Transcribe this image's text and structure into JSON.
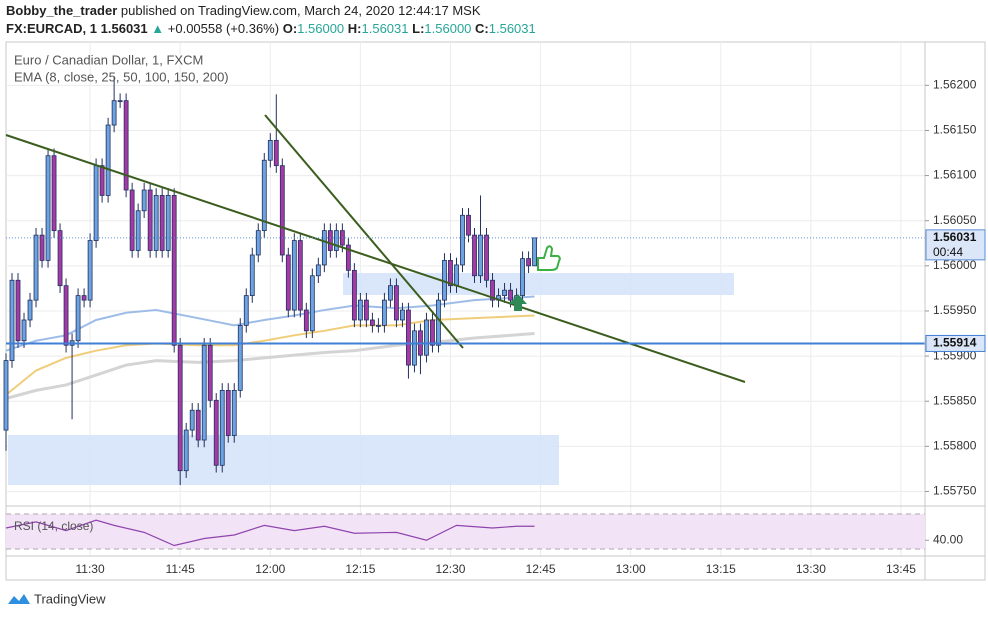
{
  "header": {
    "author": "Bobby_the_trader",
    "published": "published on TradingView.com, March 24, 2020 12:44:17 MSK",
    "symbol": "FX:EURCAD, 1",
    "last": "1.56031",
    "change_arrow": "▲",
    "change": "+0.00558 (+0.36%)",
    "ohlc": [
      {
        "label": "O:",
        "value": "1.56000"
      },
      {
        "label": "H:",
        "value": "1.56031"
      },
      {
        "label": "L:",
        "value": "1.56000"
      },
      {
        "label": "C:",
        "value": "1.56031"
      }
    ]
  },
  "chart_data": {
    "type": "candlestick",
    "title": "Euro / Canadian Dollar, 1, FXCM",
    "indicator_label": "EMA (8, close, 25, 50, 100, 150, 200)",
    "x": [
      "11:16",
      "11:17",
      "11:18",
      "11:19",
      "11:20",
      "11:21",
      "11:22",
      "11:23",
      "11:24",
      "11:25",
      "11:26",
      "11:27",
      "11:28",
      "11:29",
      "11:30",
      "11:31",
      "11:32",
      "11:33",
      "11:34",
      "11:35",
      "11:36",
      "11:37",
      "11:38",
      "11:39",
      "11:40",
      "11:41",
      "11:42",
      "11:43",
      "11:44",
      "11:45",
      "11:46",
      "11:47",
      "11:48",
      "11:49",
      "11:50",
      "11:51",
      "11:52",
      "11:53",
      "11:54",
      "11:55",
      "11:56",
      "11:57",
      "11:58",
      "11:59",
      "12:00",
      "12:01",
      "12:02",
      "12:03",
      "12:04",
      "12:05",
      "12:06",
      "12:07",
      "12:08",
      "12:09",
      "12:10",
      "12:11",
      "12:12",
      "12:13",
      "12:14",
      "12:15",
      "12:16",
      "12:17",
      "12:18",
      "12:19",
      "12:20",
      "12:21",
      "12:22",
      "12:23",
      "12:24",
      "12:25",
      "12:26",
      "12:27",
      "12:28",
      "12:29",
      "12:30",
      "12:31",
      "12:32",
      "12:33",
      "12:34",
      "12:35",
      "12:36",
      "12:37",
      "12:38",
      "12:39",
      "12:40",
      "12:41",
      "12:42",
      "12:43",
      "12:44"
    ],
    "open": [
      1.55818,
      1.55895,
      1.55984,
      1.55917,
      1.5594,
      1.55962,
      1.56034,
      1.56006,
      1.56122,
      1.56039,
      1.55978,
      1.55912,
      1.55917,
      1.55967,
      1.55962,
      1.56028,
      1.56111,
      1.56078,
      1.56156,
      1.56183,
      1.56183,
      1.56084,
      1.56017,
      1.56061,
      1.56084,
      1.56017,
      1.56078,
      1.56017,
      1.56078,
      1.55912,
      1.55773,
      1.55818,
      1.5584,
      1.55807,
      1.55912,
      1.55851,
      1.55779,
      1.55862,
      1.55812,
      1.55862,
      1.55934,
      1.55967,
      1.56012,
      1.56039,
      1.56117,
      1.56139,
      1.56111,
      1.56012,
      1.55951,
      1.56028,
      1.55951,
      1.55928,
      1.55989,
      1.56001,
      1.56039,
      1.56017,
      1.56039,
      1.56023,
      1.55995,
      1.5594,
      1.55962,
      1.5594,
      1.55934,
      1.55934,
      1.55962,
      1.55978,
      1.5594,
      1.55951,
      1.5589,
      1.55928,
      1.55901,
      1.5594,
      1.55912,
      1.55962,
      1.56006,
      1.55978,
      1.56001,
      1.56056,
      1.56034,
      1.55989,
      1.56034,
      1.55984,
      1.55962,
      1.55967,
      1.55973,
      1.55962,
      1.55967,
      1.56008,
      1.56
    ],
    "high": [
      1.55903,
      1.55992,
      1.55992,
      1.55948,
      1.5597,
      1.56042,
      1.56042,
      1.5613,
      1.5613,
      1.56047,
      1.55986,
      1.55925,
      1.55975,
      1.55975,
      1.56036,
      1.56119,
      1.56119,
      1.56164,
      1.5621,
      1.56191,
      1.56191,
      1.56092,
      1.56069,
      1.56092,
      1.56092,
      1.56086,
      1.56086,
      1.56086,
      1.56086,
      1.5592,
      1.55826,
      1.55848,
      1.55848,
      1.5592,
      1.5592,
      1.55859,
      1.5587,
      1.5587,
      1.5587,
      1.55942,
      1.55975,
      1.5602,
      1.56047,
      1.56125,
      1.56147,
      1.5619,
      1.56119,
      1.5602,
      1.56036,
      1.56036,
      1.55959,
      1.55997,
      1.56009,
      1.56047,
      1.56047,
      1.56047,
      1.56047,
      1.56031,
      1.56003,
      1.5597,
      1.5597,
      1.55948,
      1.55942,
      1.5597,
      1.55986,
      1.55986,
      1.55959,
      1.55959,
      1.55936,
      1.55936,
      1.55948,
      1.55948,
      1.5597,
      1.56014,
      1.56014,
      1.56009,
      1.56064,
      1.56064,
      1.56042,
      1.56078,
      1.56042,
      1.55992,
      1.55975,
      1.55981,
      1.55981,
      1.55975,
      1.56016,
      1.56016,
      1.56031
    ],
    "low": [
      1.55795,
      1.55887,
      1.55909,
      1.55909,
      1.55932,
      1.55954,
      1.55998,
      1.55998,
      1.56031,
      1.5597,
      1.55904,
      1.5583,
      1.55909,
      1.55954,
      1.55954,
      1.5602,
      1.5607,
      1.5607,
      1.56148,
      1.56175,
      1.56076,
      1.56009,
      1.56009,
      1.56053,
      1.56009,
      1.56009,
      1.56009,
      1.56009,
      1.55904,
      1.55757,
      1.55765,
      1.5581,
      1.55799,
      1.55799,
      1.55843,
      1.55771,
      1.55771,
      1.55804,
      1.55804,
      1.55854,
      1.55926,
      1.55959,
      1.56004,
      1.56031,
      1.56109,
      1.56103,
      1.56004,
      1.55943,
      1.55943,
      1.55943,
      1.5592,
      1.5592,
      1.55981,
      1.55993,
      1.56009,
      1.56009,
      1.56015,
      1.55987,
      1.55932,
      1.55932,
      1.55932,
      1.55926,
      1.55926,
      1.55926,
      1.55954,
      1.55932,
      1.55932,
      1.55875,
      1.55882,
      1.5588,
      1.55893,
      1.55904,
      1.55904,
      1.55954,
      1.5597,
      1.5597,
      1.55993,
      1.56026,
      1.55981,
      1.55981,
      1.55976,
      1.55954,
      1.55954,
      1.55959,
      1.55954,
      1.55954,
      1.55959,
      1.55992,
      1.56
    ],
    "close": [
      1.55895,
      1.55984,
      1.55917,
      1.5594,
      1.55962,
      1.56034,
      1.56006,
      1.56122,
      1.56039,
      1.55978,
      1.55912,
      1.55917,
      1.55967,
      1.55962,
      1.56028,
      1.56111,
      1.56078,
      1.56156,
      1.56183,
      1.56183,
      1.56084,
      1.56017,
      1.56061,
      1.56084,
      1.56017,
      1.56078,
      1.56017,
      1.56078,
      1.55912,
      1.55773,
      1.55818,
      1.5584,
      1.55807,
      1.55912,
      1.55851,
      1.55779,
      1.55862,
      1.55812,
      1.55862,
      1.55934,
      1.55967,
      1.56012,
      1.56039,
      1.56117,
      1.56139,
      1.56111,
      1.56012,
      1.55951,
      1.56028,
      1.55951,
      1.55928,
      1.55989,
      1.56001,
      1.56039,
      1.56017,
      1.56039,
      1.56023,
      1.55995,
      1.5594,
      1.55962,
      1.5594,
      1.55934,
      1.55934,
      1.55962,
      1.55978,
      1.5594,
      1.55951,
      1.5589,
      1.55928,
      1.55901,
      1.5594,
      1.55912,
      1.55962,
      1.56006,
      1.55978,
      1.56001,
      1.56056,
      1.56034,
      1.55989,
      1.56034,
      1.55984,
      1.55962,
      1.55967,
      1.55973,
      1.55962,
      1.55967,
      1.56008,
      1.56,
      1.56031
    ],
    "up_color": "#6ea3e2",
    "down_color": "#a53aa6",
    "border_color": "#22305e",
    "ema": [
      {
        "color": "#9dbde8",
        "x": [
          "11:16",
          "11:21",
          "11:26",
          "11:31",
          "11:36",
          "11:41",
          "11:48",
          "11:54",
          "11:59",
          "12:04",
          "12:09",
          "12:14",
          "12:21",
          "12:27",
          "12:34",
          "12:44"
        ],
        "values": [
          1.55906,
          1.55917,
          1.55923,
          1.5594,
          1.55948,
          1.55951,
          1.55942,
          1.55934,
          1.5594,
          1.55945,
          1.55951,
          1.55956,
          1.55953,
          1.55956,
          1.55962,
          1.55966
        ]
      },
      {
        "color": "#f0cd7a",
        "x": [
          "11:16",
          "11:21",
          "11:26",
          "11:31",
          "11:36",
          "11:41",
          "11:48",
          "11:54",
          "11:59",
          "12:04",
          "12:09",
          "12:14",
          "12:21",
          "12:27",
          "12:34",
          "12:44"
        ],
        "values": [
          1.55857,
          1.55884,
          1.55898,
          1.55906,
          1.55912,
          1.55914,
          1.55912,
          1.55912,
          1.55917,
          1.55923,
          1.55928,
          1.55934,
          1.55934,
          1.5594,
          1.55942,
          1.55945
        ]
      },
      {
        "color": "#d4d4d4",
        "x": [
          "11:16",
          "11:21",
          "11:26",
          "11:31",
          "11:36",
          "11:41",
          "11:48",
          "11:54",
          "11:59",
          "12:04",
          "12:09",
          "12:14",
          "12:21",
          "12:27",
          "12:34",
          "12:44"
        ],
        "values": [
          1.55853,
          1.55862,
          1.55868,
          1.55879,
          1.5589,
          1.55895,
          1.55893,
          1.55895,
          1.55898,
          1.55901,
          1.55904,
          1.55906,
          1.55912,
          1.55915,
          1.5592,
          1.55925
        ]
      }
    ],
    "xlim": [
      "11:16",
      "13:49"
    ],
    "xticks": [
      "11:30",
      "11:45",
      "12:00",
      "12:15",
      "12:30",
      "12:45",
      "13:00",
      "13:15",
      "13:30",
      "13:45"
    ],
    "ylim": [
      1.55735,
      1.56248
    ],
    "yticks": [
      {
        "value": 1.562,
        "label": "1.56200"
      },
      {
        "value": 1.5615,
        "label": "1.56150"
      },
      {
        "value": 1.561,
        "label": "1.56100"
      },
      {
        "value": 1.5605,
        "label": "1.56050"
      },
      {
        "value": 1.56,
        "label": "1.56000"
      },
      {
        "value": 1.5595,
        "label": "1.55950"
      },
      {
        "value": 1.559,
        "label": "1.55900"
      },
      {
        "value": 1.5585,
        "label": "1.55850"
      },
      {
        "value": 1.558,
        "label": "1.55800"
      },
      {
        "value": 1.5575,
        "label": "1.55750"
      }
    ],
    "grid": true,
    "countdown": "00:44",
    "horizontal_line": 1.55914,
    "rsi": {
      "label": "RSI (14, close)",
      "color": "#8e44ad",
      "x": [
        "11:16",
        "11:21",
        "11:26",
        "11:31",
        "11:34",
        "11:39",
        "11:44",
        "11:49",
        "11:54",
        "11:59",
        "12:04",
        "12:09",
        "12:14",
        "12:21",
        "12:26",
        "12:31",
        "12:37",
        "12:41",
        "12:44"
      ],
      "values": [
        54,
        61,
        51,
        63,
        57,
        49,
        34,
        42,
        46,
        57,
        51,
        56,
        48,
        49,
        40,
        57,
        54,
        56,
        56
      ],
      "ylim": [
        22,
        78
      ],
      "band": [
        30,
        70
      ],
      "yticks": [
        {
          "value": 40,
          "label": "40.00"
        }
      ]
    }
  },
  "footer": {
    "brand": "TradingView"
  }
}
